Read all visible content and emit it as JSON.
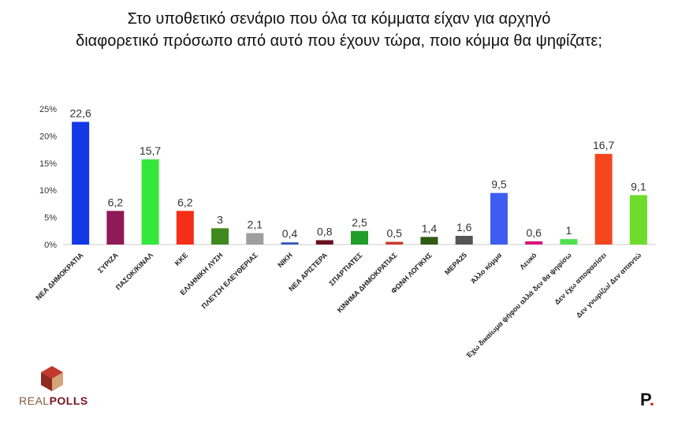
{
  "title_line1": "Στο υποθετικό σενάριο που όλα τα κόμματα είχαν για αρχηγό",
  "title_line2": "διαφορετικό πρόσωπο από αυτό που έχουν τώρα, ποιο κόμμα θα ψηφίζατε;",
  "logo_left": {
    "part1": "REAL",
    "part2": "POLLS"
  },
  "logo_right": {
    "letter": "P",
    "dot": "."
  },
  "chart_data": {
    "type": "bar",
    "title": "Στο υποθετικό σενάριο που όλα τα κόμματα είχαν για αρχηγό διαφορετικό πρόσωπο από αυτό που έχουν τώρα, ποιο κόμμα θα ψηφίζατε;",
    "xlabel": "",
    "ylabel": "",
    "ylim": [
      0,
      25
    ],
    "yticks": [
      "0%",
      "5%",
      "10%",
      "15%",
      "20%",
      "25%"
    ],
    "grid": false,
    "categories": [
      "ΝΕΑ ΔΗΜΟΚΡΑΤΙΑ",
      "ΣΥΡΙΖΑ",
      "ΠΑΣΟΚ/ΚΙΝΑΛ",
      "ΚΚΕ",
      "ΕΛΛΗΝΙΚΗ ΛΥΣΗ",
      "ΠΛΕΥΣΗ ΕΛΕΥΘΕΡΙΑΣ",
      "ΝΙΚΗ",
      "ΝΕΑ ΑΡΙΣΤΕΡΑ",
      "ΣΠΑΡΤΙΑΤΕΣ",
      "ΚΙΝΗΜΑ ΔΗΜΟΚΡΑΤΙΑΣ",
      "ΦΩΝΗ ΛΟΓΙΚΗΣ",
      "ΜΕΡΑ25",
      "Άλλο κόμμα",
      "Λευκό",
      "Έχω δικαίωμα ψήφου αλλά δεν θα ψηφίσω",
      "Δεν έχω αποφασίσει",
      "Δεν γνωρίζω/ Δεν απαντώ"
    ],
    "values": [
      22.6,
      6.2,
      15.7,
      6.2,
      3,
      2.1,
      0.4,
      0.8,
      2.5,
      0.5,
      1.4,
      1.6,
      9.5,
      0.6,
      1,
      16.7,
      9.1
    ],
    "value_labels": [
      "22,6",
      "6,2",
      "15,7",
      "6,2",
      "3",
      "2,1",
      "0,4",
      "0,8",
      "2,5",
      "0,5",
      "1,4",
      "1,6",
      "9,5",
      "0,6",
      "1",
      "16,7",
      "9,1"
    ],
    "colors": [
      "#1238e8",
      "#8e1a57",
      "#34e83a",
      "#f52d19",
      "#3f8a1e",
      "#9e9e9e",
      "#2f55b8",
      "#6b1020",
      "#1f9e2a",
      "#c93a2e",
      "#2f5a12",
      "#555555",
      "#3d5cf0",
      "#d6197a",
      "#4fe04c",
      "#f4461e",
      "#6ddc2a"
    ]
  }
}
